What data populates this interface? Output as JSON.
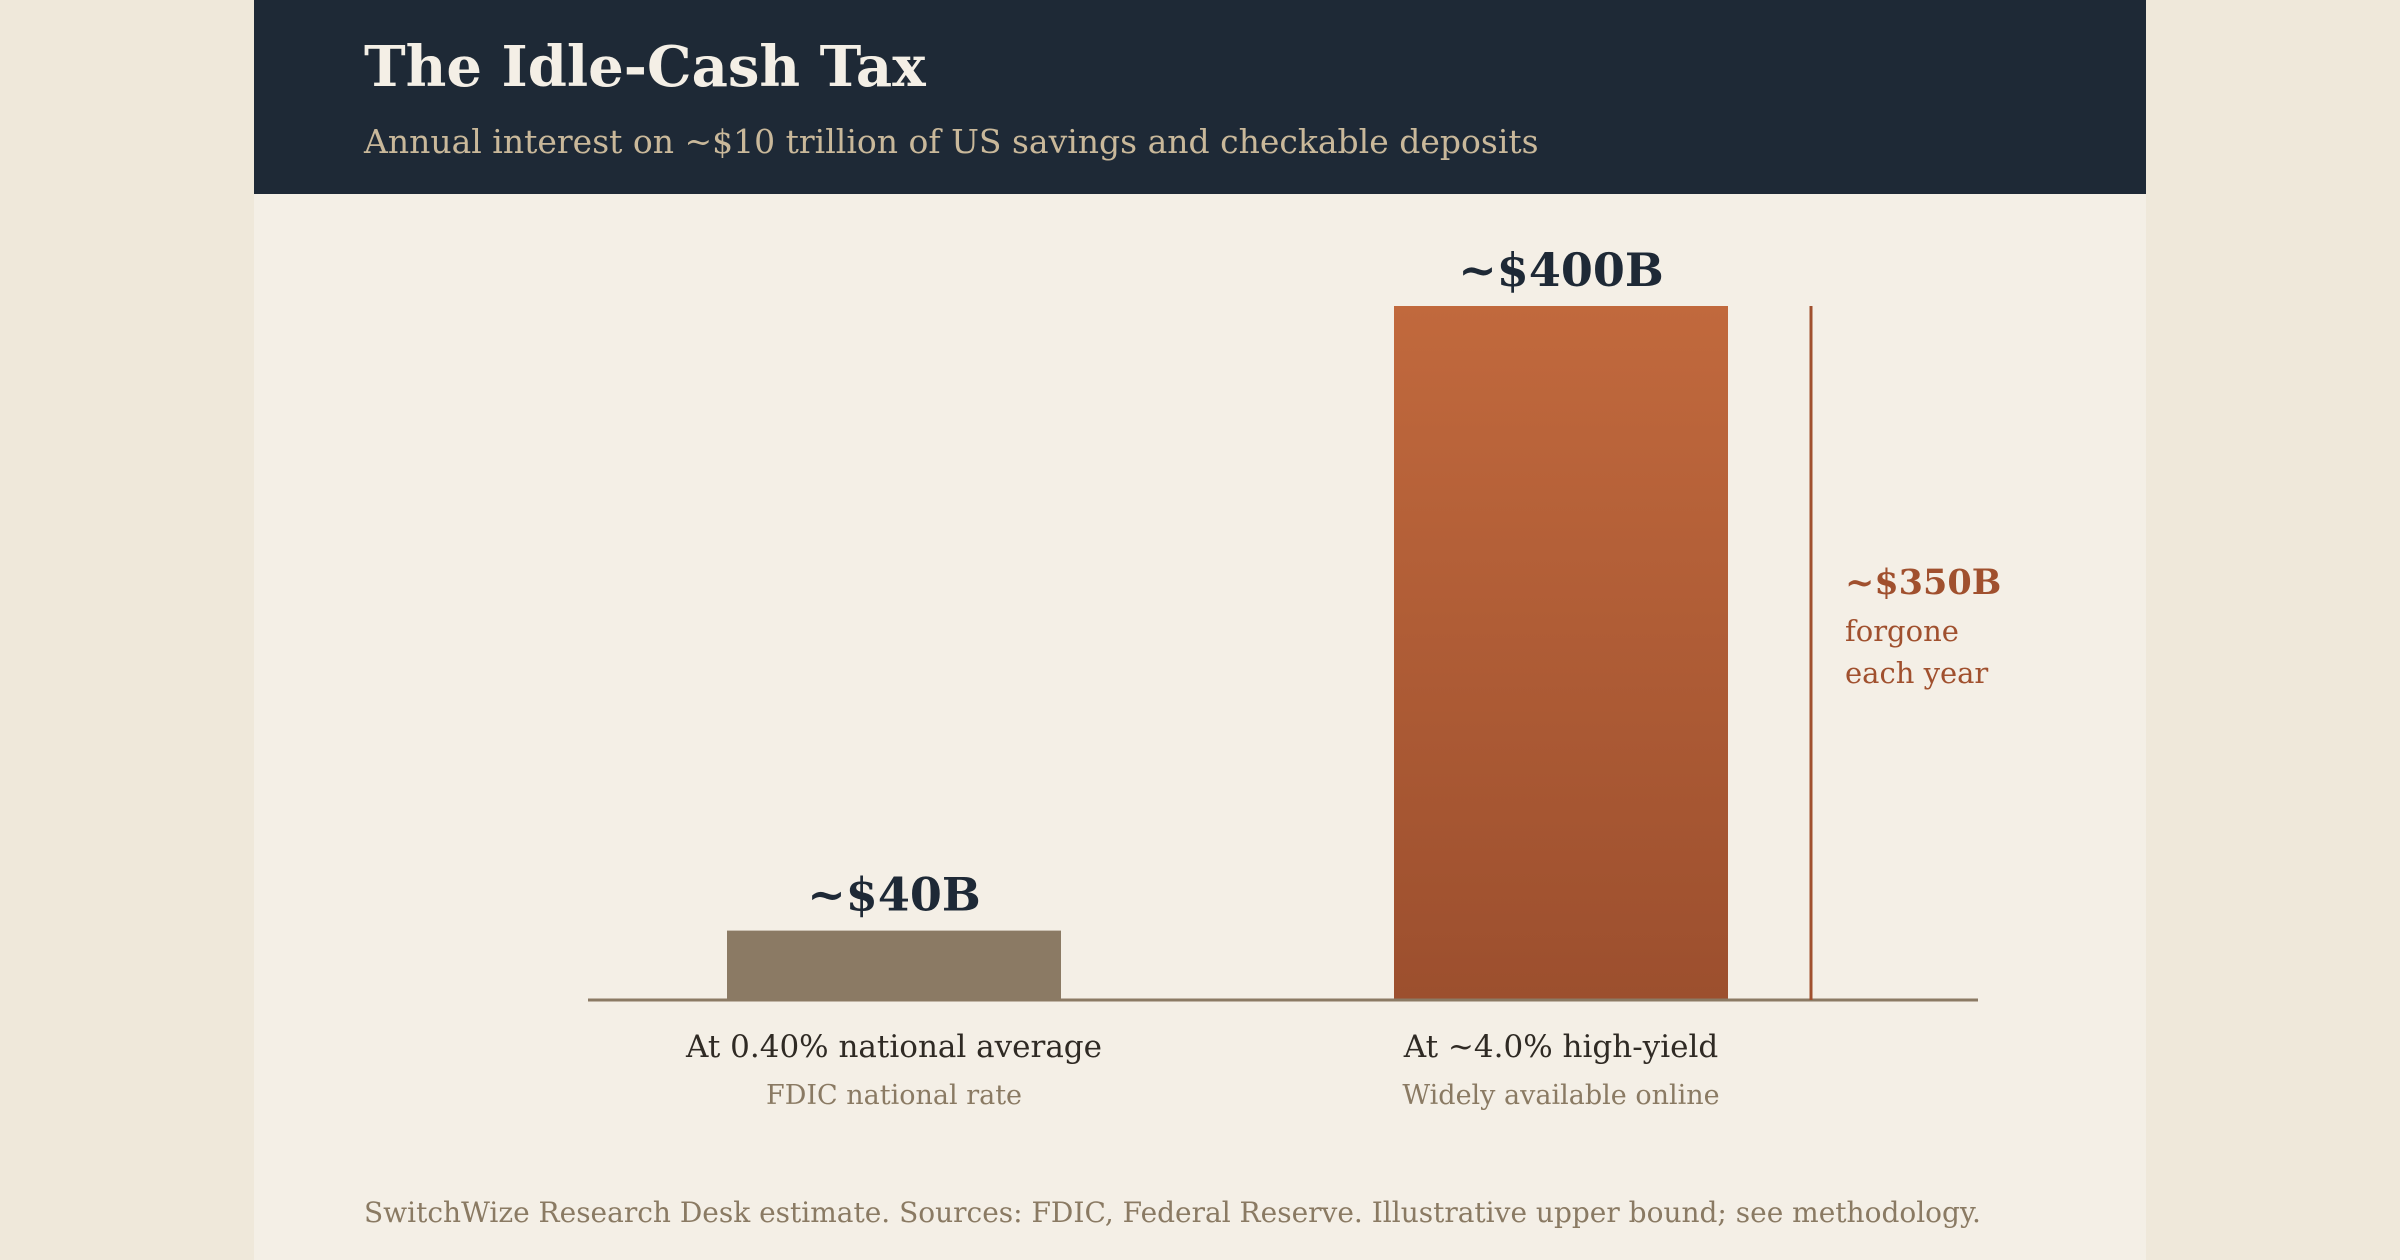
{
  "header": {
    "title": "The Idle-Cash Tax",
    "subtitle": "Annual interest on ~$10 trillion of US savings and checkable deposits"
  },
  "footer": {
    "note": "SwitchWize Research Desk estimate. Sources: FDIC, Federal Reserve. Illustrative upper bound; see methodology."
  },
  "colors": {
    "header_bg": "#1e2936",
    "bar_low": "#8b7a64",
    "bar_high_top": "#c1693d",
    "bar_high_bottom": "#9c4f2e",
    "accent": "#a0502e",
    "axis": "#8b7a64",
    "value_text": "#1e2936"
  },
  "chart_data": {
    "type": "bar",
    "title": "The Idle-Cash Tax",
    "subtitle": "Annual interest on ~$10 trillion of US savings and checkable deposits",
    "unit": "USD billions",
    "categories": [
      "At 0.40% national average",
      "At ~4.0% high-yield"
    ],
    "sublabels": [
      "FDIC national rate",
      "Widely available online"
    ],
    "values": [
      40,
      400
    ],
    "value_labels": [
      "~$40B",
      "~$400B"
    ],
    "ylim": [
      0,
      400
    ],
    "grid": false,
    "annotation": {
      "value_label": "~$350B",
      "text_lines": [
        "forgone",
        "each year"
      ]
    }
  }
}
